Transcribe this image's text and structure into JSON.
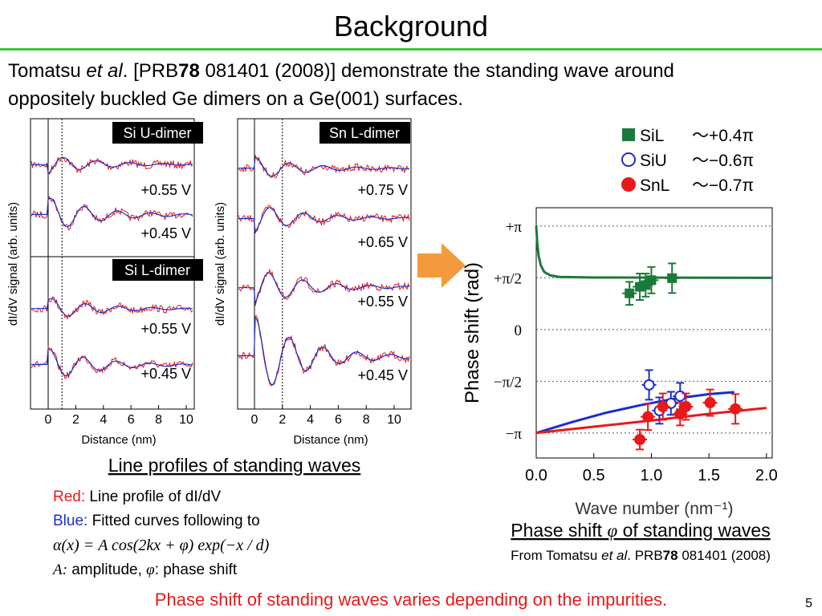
{
  "header": {
    "title": "Background"
  },
  "intro": {
    "line1": [
      "Tomatsu ",
      "et al",
      ". [PRB",
      "78",
      " 081401 (2008)] demonstrate the standing wave around"
    ],
    "line2": "oppositely buckled Ge dimers on a Ge(001) surfaces."
  },
  "profiles": {
    "panels": [
      {
        "ylabel": "dI/dV signal (arb. units)",
        "xlabel": "Distance (nm)",
        "xticks": [
          0,
          2,
          4,
          6,
          8,
          10
        ],
        "tags": [
          "Si U-dimer",
          "Si L-dimer"
        ],
        "biases": [
          "+0.55 V",
          "+0.45 V",
          "+0.55 V",
          "+0.45 V"
        ]
      },
      {
        "ylabel": "dI/dV signal (arb. units)",
        "xlabel": "Distance (nm)",
        "xticks": [
          0,
          2,
          4,
          6,
          8,
          10
        ],
        "tags": [
          "Sn L-dimer"
        ],
        "biases": [
          "+0.75 V",
          "+0.65 V",
          "+0.55 V",
          "+0.45 V"
        ]
      }
    ],
    "caption": "Line profiles of standing waves"
  },
  "notes": {
    "red": [
      "Red:",
      " Line profile of dI/dV"
    ],
    "blue": [
      "Blue:",
      " Fitted curves following to"
    ],
    "formula": "α(x) = A cos(2kx + φ) exp(−x / d)",
    "params": [
      "A:",
      "  amplitude, ",
      "φ",
      ":  phase shift"
    ]
  },
  "chart_data": {
    "type": "scatter",
    "ylabel": "Phase shift (rad)",
    "xlabel": "Wave number (nm⁻¹)",
    "xlim": [
      0,
      2.05
    ],
    "xticks": [
      {
        "value": 0,
        "label": "0.0"
      },
      {
        "value": 0.5,
        "label": "0.5"
      },
      {
        "value": 1,
        "label": "1.0"
      },
      {
        "value": 1.5,
        "label": "1.5"
      },
      {
        "value": 2,
        "label": "2.0"
      }
    ],
    "ylim": [
      -3.9,
      3.7
    ],
    "yticks": [
      {
        "value": 3.1416,
        "label": "+π"
      },
      {
        "value": 1.5708,
        "label": "+π/2"
      },
      0,
      {
        "value": -1.5708,
        "label": "−π/2"
      },
      {
        "value": -3.1416,
        "label": "−π"
      }
    ],
    "grid": true,
    "series": [
      {
        "name": "SiL",
        "annotation": "～+0.4π",
        "color": "#1a7a3a",
        "marker": "square",
        "x": [
          0.81,
          0.9,
          0.95,
          1.0,
          1.18
        ],
        "values": [
          1.1,
          1.3,
          1.35,
          1.5,
          1.56
        ],
        "yerr": [
          0.35,
          0.4,
          0.35,
          0.4,
          0.45
        ]
      },
      {
        "name": "SiU",
        "annotation": "～−0.6π",
        "color": "#1a2fcc",
        "marker": "open-circle",
        "x": [
          0.98,
          1.07,
          1.17,
          1.25
        ],
        "values": [
          -1.68,
          -2.46,
          -2.24,
          -2.02
        ],
        "yerr": [
          0.45,
          0.4,
          0.35,
          0.4
        ]
      },
      {
        "name": "SnL",
        "annotation": "～−0.7π",
        "color": "#e8191a",
        "marker": "circle",
        "x": [
          0.9,
          0.97,
          1.1,
          1.25,
          1.3,
          1.51,
          1.73
        ],
        "values": [
          -3.34,
          -2.65,
          -2.34,
          -2.56,
          -2.34,
          -2.22,
          -2.41
        ],
        "yerr": [
          0.3,
          0.4,
          0.4,
          0.35,
          0.4,
          0.4,
          0.45
        ]
      }
    ],
    "fits": [
      {
        "color": "#1a7a3a",
        "x": [
          0,
          0.01,
          0.02,
          0.04,
          0.07,
          0.12,
          0.2,
          0.5,
          2.05
        ],
        "values": [
          3.14,
          2.6,
          2.25,
          1.95,
          1.75,
          1.65,
          1.6,
          1.58,
          1.57
        ]
      },
      {
        "color": "#1a2fcc",
        "x": [
          0,
          0.3,
          0.6,
          0.9,
          1.2,
          1.5,
          1.72
        ],
        "values": [
          -3.14,
          -2.82,
          -2.53,
          -2.3,
          -2.1,
          -1.96,
          -1.9
        ]
      },
      {
        "color": "#e8191a",
        "x": [
          0,
          0.5,
          1.0,
          1.5,
          2.0
        ],
        "values": [
          -3.14,
          -2.95,
          -2.76,
          -2.56,
          -2.38
        ]
      }
    ],
    "caption": [
      "Phase shift ",
      "φ",
      " of standing waves"
    ],
    "source": [
      "From Tomatsu ",
      "et al",
      ". PRB",
      "78",
      " 081401 (2008)"
    ]
  },
  "footer": {
    "message": "Phase shift of standing waves varies depending on the impurities.",
    "page": "5"
  }
}
